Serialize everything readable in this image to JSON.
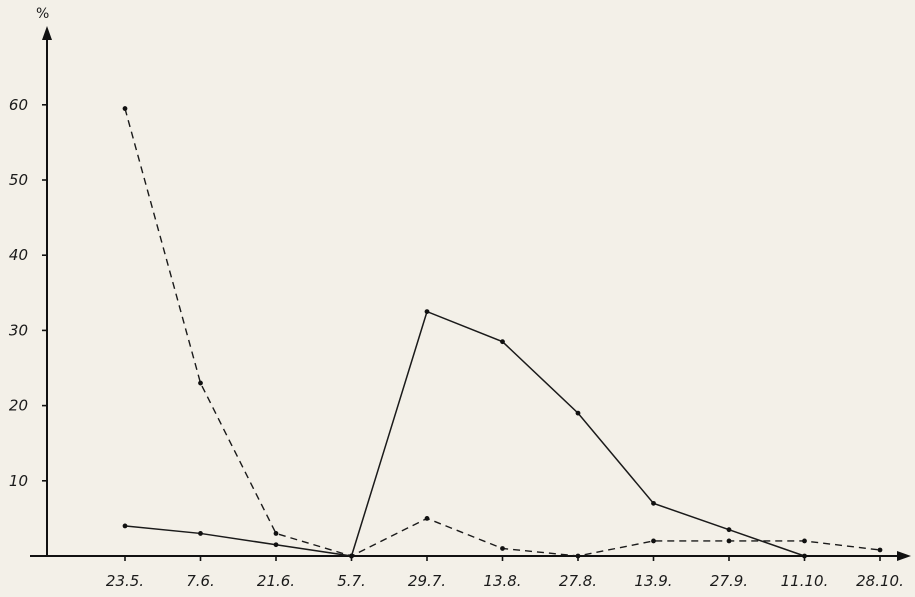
{
  "chart_data": {
    "type": "line",
    "ylabel": "%",
    "xlabel": "",
    "title": "",
    "categories": [
      "23.5.",
      "7.6.",
      "21.6.",
      "5.7.",
      "29.7.",
      "13.8.",
      "27.8.",
      "13.9.",
      "27.9.",
      "11.10.",
      "28.10."
    ],
    "y_ticks": [
      "10",
      "20",
      "30",
      "40",
      "50",
      "60"
    ],
    "ylim": [
      0,
      66
    ],
    "grid": false,
    "legend": "none",
    "series": [
      {
        "style": "solid",
        "values": [
          4,
          3,
          1.5,
          0,
          32.5,
          28.5,
          19,
          7,
          3.5,
          0,
          null
        ]
      },
      {
        "style": "dashed",
        "values": [
          59.5,
          23,
          3,
          0,
          5,
          1,
          0,
          2,
          2,
          2,
          0.8
        ]
      }
    ]
  }
}
